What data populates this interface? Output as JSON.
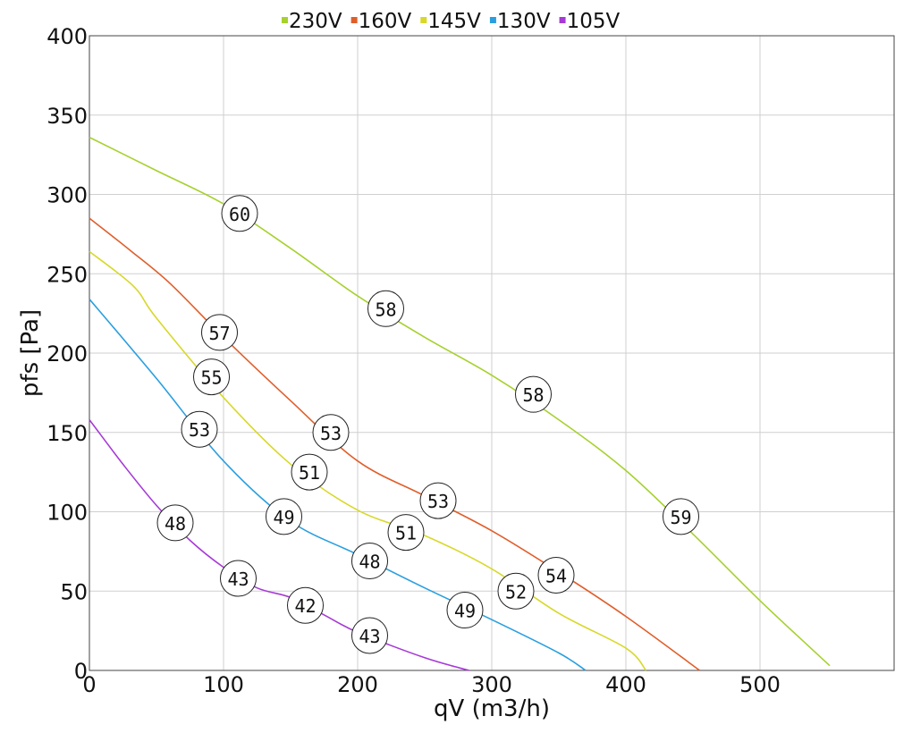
{
  "chart_data": {
    "type": "line",
    "xlabel": "qV (m3/h)",
    "ylabel": "pfs [Pa]",
    "xlim": [
      0,
      600
    ],
    "ylim": [
      0,
      400
    ],
    "xticks": [
      0,
      100,
      200,
      300,
      400,
      500
    ],
    "yticks": [
      0,
      50,
      100,
      150,
      200,
      250,
      300,
      350,
      400
    ],
    "grid": true,
    "legend_position": "top-center",
    "series": [
      {
        "name": "230V",
        "color": "#a6d12e",
        "points": [
          [
            0,
            336
          ],
          [
            50,
            315
          ],
          [
            100,
            294
          ],
          [
            150,
            266
          ],
          [
            200,
            236
          ],
          [
            250,
            210
          ],
          [
            300,
            186
          ],
          [
            350,
            158
          ],
          [
            400,
            126
          ],
          [
            450,
            86
          ],
          [
            500,
            44
          ],
          [
            552,
            3
          ]
        ],
        "markers": [
          [
            112,
            288,
            "60"
          ],
          [
            221,
            228,
            "58"
          ],
          [
            331,
            174,
            "58"
          ],
          [
            441,
            97,
            "59"
          ]
        ]
      },
      {
        "name": "160V",
        "color": "#e05e2b",
        "points": [
          [
            0,
            285
          ],
          [
            30,
            265
          ],
          [
            60,
            244
          ],
          [
            100,
            210
          ],
          [
            150,
            170
          ],
          [
            200,
            132
          ],
          [
            250,
            110
          ],
          [
            300,
            88
          ],
          [
            350,
            62
          ],
          [
            400,
            34
          ],
          [
            455,
            0
          ]
        ],
        "markers": [
          [
            97,
            213,
            "57"
          ],
          [
            180,
            150,
            "53"
          ],
          [
            260,
            107,
            "53"
          ],
          [
            348,
            60,
            "54"
          ]
        ]
      },
      {
        "name": "145V",
        "color": "#d8d82a",
        "points": [
          [
            0,
            264
          ],
          [
            33,
            242
          ],
          [
            50,
            222
          ],
          [
            100,
            172
          ],
          [
            150,
            130
          ],
          [
            200,
            101
          ],
          [
            250,
            85
          ],
          [
            300,
            64
          ],
          [
            350,
            36
          ],
          [
            400,
            14
          ],
          [
            415,
            0
          ]
        ],
        "markers": [
          [
            91,
            185,
            "55"
          ],
          [
            164,
            125,
            "51"
          ],
          [
            236,
            87,
            "51"
          ],
          [
            318,
            50,
            "52"
          ]
        ]
      },
      {
        "name": "130V",
        "color": "#2a9fdf",
        "points": [
          [
            0,
            234
          ],
          [
            50,
            184
          ],
          [
            100,
            132
          ],
          [
            150,
            94
          ],
          [
            200,
            73
          ],
          [
            250,
            52
          ],
          [
            300,
            32
          ],
          [
            350,
            11
          ],
          [
            370,
            0
          ]
        ],
        "markers": [
          [
            82,
            152,
            "53"
          ],
          [
            145,
            97,
            "49"
          ],
          [
            209,
            69,
            "48"
          ],
          [
            280,
            38,
            "49"
          ]
        ]
      },
      {
        "name": "105V",
        "color": "#a63ad6",
        "points": [
          [
            0,
            158
          ],
          [
            25,
            130
          ],
          [
            50,
            104
          ],
          [
            75,
            82
          ],
          [
            100,
            65
          ],
          [
            125,
            52
          ],
          [
            150,
            46
          ],
          [
            175,
            35
          ],
          [
            200,
            24
          ],
          [
            250,
            8
          ],
          [
            283,
            0
          ]
        ],
        "markers": [
          [
            64,
            93,
            "48"
          ],
          [
            111,
            58,
            "43"
          ],
          [
            161,
            41,
            "42"
          ],
          [
            209,
            22,
            "43"
          ]
        ]
      }
    ]
  }
}
